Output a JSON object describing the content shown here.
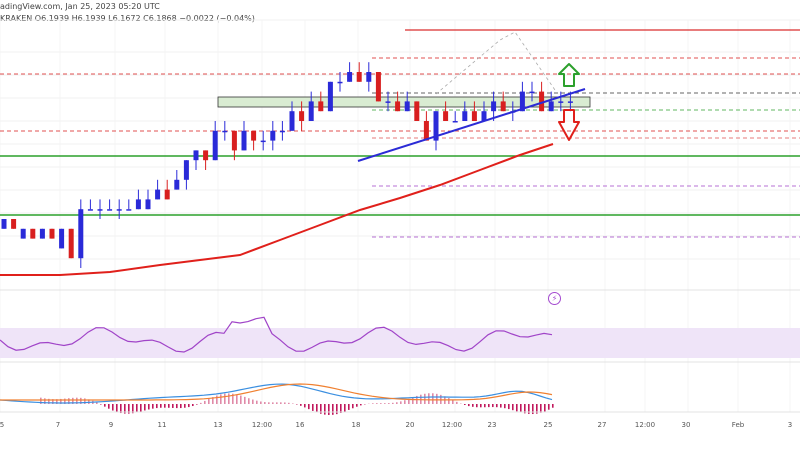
{
  "header": {
    "line1": "adingView.com, Jan 25, 2023 05:20 UTC",
    "line2": "KRAKEN  O6.1939  H6.1939  L6.1672  C6.1868  −0.0022  (−0.04%)"
  },
  "x_axis_labels": [
    "5",
    "7",
    "9",
    "11",
    "13",
    "12:00",
    "16",
    "18",
    "20",
    "12:00",
    "23",
    "25",
    "27",
    "12:00",
    "30",
    "Feb",
    "3"
  ],
  "colors": {
    "up_candle": "#2a2ad8",
    "down_candle": "#d81f1f",
    "moving_average": "#e0201b",
    "trendline": "#2b2bd6",
    "support": "#2ca02c",
    "resistance": "#e05050",
    "oscillator": "#a044c8",
    "macd_line": "#3b8fe0",
    "signal_line": "#f08030"
  },
  "icons": {
    "flash": "flash-icon",
    "up_arrow": "green-up-arrow-icon",
    "down_arrow": "red-down-arrow-icon"
  },
  "chart_data": {
    "type": "candlestick",
    "x": [
      "5",
      "7",
      "9",
      "11",
      "13",
      "12:00",
      "16",
      "18",
      "20",
      "12:00",
      "23",
      "25"
    ],
    "candles": [
      [
        0.0,
        5.0,
        4.0,
        4.0,
        5.0
      ],
      [
        0.5,
        5.0,
        4.0,
        5.0,
        4.0
      ],
      [
        1.0,
        4.0,
        3.0,
        3.0,
        4.0
      ],
      [
        1.5,
        4.0,
        3.0,
        4.0,
        3.0
      ],
      [
        2.0,
        4.0,
        3.0,
        3.0,
        4.0
      ],
      [
        2.5,
        4.0,
        3.0,
        4.0,
        3.0
      ],
      [
        3.0,
        4.0,
        2.0,
        2.0,
        4.0
      ],
      [
        3.5,
        4.0,
        1.0,
        4.0,
        1.0
      ],
      [
        4.0,
        7.0,
        0.0,
        1.0,
        6.0
      ],
      [
        4.5,
        7.0,
        6.0,
        6.0,
        6.0
      ],
      [
        5.0,
        7.0,
        5.0,
        6.0,
        6.0
      ],
      [
        5.5,
        7.0,
        6.0,
        6.0,
        6.0
      ],
      [
        6.0,
        7.0,
        5.0,
        6.0,
        6.0
      ],
      [
        6.5,
        7.0,
        6.0,
        6.0,
        6.0
      ],
      [
        7.0,
        8.0,
        6.0,
        6.0,
        7.0
      ],
      [
        7.5,
        8.0,
        6.0,
        6.0,
        7.0
      ],
      [
        8.0,
        9.0,
        7.0,
        7.0,
        8.0
      ],
      [
        8.5,
        9.0,
        7.0,
        8.0,
        7.0
      ],
      [
        9.0,
        10.0,
        8.0,
        8.0,
        9.0
      ],
      [
        9.5,
        11.0,
        8.0,
        9.0,
        11.0
      ],
      [
        10.0,
        12.0,
        10.0,
        11.0,
        12.0
      ],
      [
        10.5,
        12.0,
        10.0,
        12.0,
        11.0
      ],
      [
        11.0,
        15.0,
        11.0,
        11.0,
        14.0
      ],
      [
        11.5,
        15.0,
        13.0,
        14.0,
        14.0
      ],
      [
        12.0,
        14.0,
        11.0,
        14.0,
        12.0
      ],
      [
        12.5,
        15.0,
        12.0,
        12.0,
        14.0
      ],
      [
        13.0,
        14.0,
        12.0,
        14.0,
        13.0
      ],
      [
        13.5,
        14.0,
        12.0,
        13.0,
        13.0
      ],
      [
        14.0,
        15.0,
        12.0,
        13.0,
        14.0
      ],
      [
        14.5,
        15.0,
        13.0,
        14.0,
        14.0
      ],
      [
        15.0,
        17.0,
        14.0,
        14.0,
        16.0
      ],
      [
        15.5,
        17.0,
        14.0,
        16.0,
        15.0
      ],
      [
        16.0,
        18.0,
        15.0,
        15.0,
        17.0
      ],
      [
        16.5,
        18.0,
        16.0,
        17.0,
        16.0
      ],
      [
        17.0,
        19.0,
        16.0,
        16.0,
        19.0
      ],
      [
        17.5,
        20.0,
        18.0,
        19.0,
        19.0
      ],
      [
        18.0,
        21.0,
        19.0,
        19.0,
        20.0
      ],
      [
        18.5,
        21.0,
        19.0,
        20.0,
        19.0
      ],
      [
        19.0,
        21.0,
        18.0,
        19.0,
        20.0
      ],
      [
        19.5,
        20.0,
        17.0,
        20.0,
        17.0
      ],
      [
        20.0,
        18.0,
        16.0,
        17.0,
        17.0
      ],
      [
        20.5,
        18.0,
        16.0,
        17.0,
        16.0
      ],
      [
        21.0,
        18.0,
        16.0,
        16.0,
        17.0
      ],
      [
        21.5,
        17.0,
        15.0,
        17.0,
        15.0
      ],
      [
        22.0,
        16.0,
        13.0,
        15.0,
        13.0
      ],
      [
        22.5,
        16.0,
        12.0,
        13.0,
        16.0
      ],
      [
        23.0,
        17.0,
        15.0,
        16.0,
        15.0
      ],
      [
        23.5,
        16.0,
        15.0,
        15.0,
        15.0
      ],
      [
        24.0,
        17.0,
        15.0,
        15.0,
        16.0
      ],
      [
        24.5,
        17.0,
        15.0,
        16.0,
        15.0
      ],
      [
        25.0,
        17.0,
        15.0,
        15.0,
        16.0
      ],
      [
        25.5,
        18.0,
        15.0,
        16.0,
        17.0
      ],
      [
        26.0,
        18.0,
        16.0,
        17.0,
        16.0
      ],
      [
        26.5,
        17.0,
        15.0,
        16.0,
        16.0
      ],
      [
        27.0,
        19.0,
        16.0,
        16.0,
        18.0
      ],
      [
        27.5,
        19.0,
        17.0,
        18.0,
        18.0
      ],
      [
        28.0,
        19.0,
        16.0,
        18.0,
        16.0
      ],
      [
        28.5,
        18.0,
        16.0,
        16.0,
        17.0
      ],
      [
        29.0,
        18.0,
        16.0,
        17.0,
        17.0
      ],
      [
        29.5,
        18.0,
        16.0,
        17.0,
        17.0
      ]
    ],
    "ylabel": "",
    "xlabel": ""
  }
}
